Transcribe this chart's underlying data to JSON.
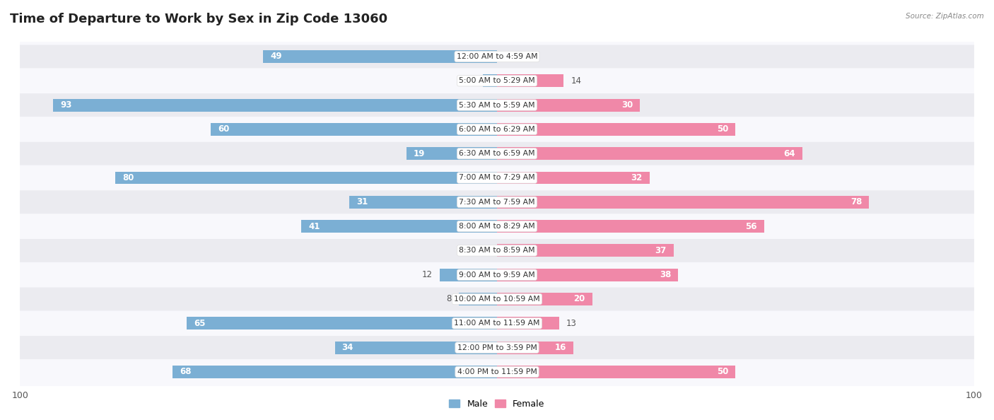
{
  "title": "Time of Departure to Work by Sex in Zip Code 13060",
  "source": "Source: ZipAtlas.com",
  "categories": [
    "12:00 AM to 4:59 AM",
    "5:00 AM to 5:29 AM",
    "5:30 AM to 5:59 AM",
    "6:00 AM to 6:29 AM",
    "6:30 AM to 6:59 AM",
    "7:00 AM to 7:29 AM",
    "7:30 AM to 7:59 AM",
    "8:00 AM to 8:29 AM",
    "8:30 AM to 8:59 AM",
    "9:00 AM to 9:59 AM",
    "10:00 AM to 10:59 AM",
    "11:00 AM to 11:59 AM",
    "12:00 PM to 3:59 PM",
    "4:00 PM to 11:59 PM"
  ],
  "male_values": [
    49,
    3,
    93,
    60,
    19,
    80,
    31,
    41,
    0,
    12,
    8,
    65,
    34,
    68
  ],
  "female_values": [
    0,
    14,
    30,
    50,
    64,
    32,
    78,
    56,
    37,
    38,
    20,
    13,
    16,
    50
  ],
  "male_color": "#7bafd4",
  "female_color": "#f088a8",
  "background_row_light": "#ebebf0",
  "background_row_white": "#f8f8fc",
  "title_fontsize": 13,
  "label_fontsize": 8.5,
  "axis_max": 100,
  "bar_height": 0.52
}
